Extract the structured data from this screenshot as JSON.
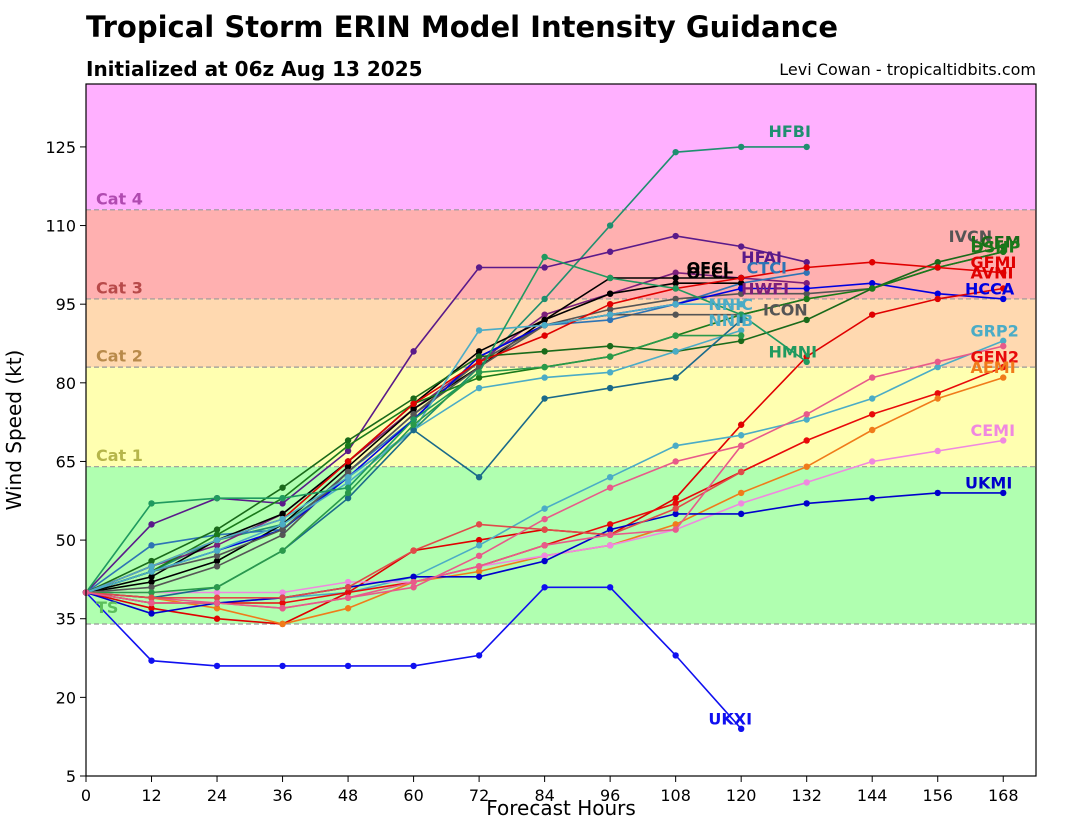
{
  "header": {
    "title": "Tropical Storm ERIN Model Intensity Guidance",
    "subtitle": "Initialized at 06z Aug 13 2025",
    "credit": "Levi Cowan - tropicaltidbits.com"
  },
  "chart_data": {
    "type": "line",
    "xlabel": "Forecast Hours",
    "ylabel": "Wind Speed (kt)",
    "xlim": [
      0,
      174
    ],
    "ylim": [
      5,
      137
    ],
    "xticks": [
      0,
      12,
      24,
      36,
      48,
      60,
      72,
      84,
      96,
      108,
      120,
      132,
      144,
      156,
      168
    ],
    "yticks": [
      5,
      20,
      35,
      50,
      65,
      80,
      95,
      110,
      125
    ],
    "bands": [
      {
        "label": "",
        "from": 5,
        "to": 34,
        "color": "#ffffff"
      },
      {
        "label": "TS",
        "from": 34,
        "to": 64,
        "color": "#b0ffb0",
        "text_color": "#5bbf5b",
        "label_y": 37
      },
      {
        "label": "Cat 1",
        "from": 64,
        "to": 83,
        "color": "#ffffb0",
        "text_color": "#b5b54a",
        "label_y": 66
      },
      {
        "label": "Cat 2",
        "from": 83,
        "to": 96,
        "color": "#ffd9b0",
        "text_color": "#b88a4a",
        "label_y": 85
      },
      {
        "label": "Cat 3",
        "from": 96,
        "to": 113,
        "color": "#ffb0b0",
        "text_color": "#b84a4a",
        "label_y": 98
      },
      {
        "label": "Cat 4",
        "from": 113,
        "to": 137,
        "color": "#ffb0ff",
        "text_color": "#b04ab0",
        "label_y": 115
      }
    ],
    "series": [
      {
        "name": "HFBI",
        "color": "#1f8f6f",
        "x": [
          0,
          12,
          24,
          36,
          48,
          60,
          72,
          84,
          96,
          108,
          120,
          132
        ],
        "y": [
          40,
          44,
          50,
          53,
          62,
          71,
          83,
          96,
          110,
          124,
          125,
          125
        ],
        "label_x": 125,
        "label_y": 128
      },
      {
        "name": "HFAI",
        "color": "#5a1a8a",
        "x": [
          0,
          12,
          24,
          36,
          48,
          60,
          72,
          84,
          96,
          108,
          120,
          132
        ],
        "y": [
          40,
          53,
          58,
          57,
          67,
          86,
          102,
          102,
          105,
          108,
          106,
          103
        ],
        "label_x": 120,
        "label_y": 104
      },
      {
        "name": "HWFI",
        "color": "#7b1f7b",
        "x": [
          0,
          12,
          24,
          36,
          48,
          60,
          72,
          84,
          96,
          108,
          120,
          132
        ],
        "y": [
          40,
          45,
          49,
          55,
          65,
          75,
          84,
          93,
          97,
          101,
          100,
          99
        ],
        "label_x": 120,
        "label_y": 98
      },
      {
        "name": "CTCI",
        "color": "#2e74b5",
        "x": [
          0,
          12,
          24,
          36,
          48,
          60,
          72,
          84,
          96,
          108,
          120,
          132
        ],
        "y": [
          40,
          49,
          51,
          52,
          63,
          73,
          85,
          91,
          92,
          95,
          99,
          101
        ],
        "label_x": 121,
        "label_y": 102
      },
      {
        "name": "OFCL",
        "color": "#000000",
        "x": [
          0,
          12,
          24,
          36,
          48,
          60,
          72,
          84,
          96,
          108,
          120
        ],
        "y": [
          40,
          43,
          50,
          55,
          65,
          76,
          86,
          92,
          100,
          100,
          100
        ],
        "label_x": 110,
        "label_y": 102
      },
      {
        "name": "OFCI",
        "color": "#000000",
        "x": [
          0,
          12,
          24,
          36,
          48,
          60,
          72,
          84,
          96,
          108,
          120
        ],
        "y": [
          40,
          42,
          46,
          53,
          64,
          75,
          83,
          92,
          97,
          99,
          99
        ],
        "label_x": 110,
        "label_y": 101
      },
      {
        "name": "IVCN",
        "color": "#555555",
        "x": [
          0,
          12,
          24,
          36,
          48,
          60,
          72,
          84,
          96,
          108,
          120,
          132,
          144,
          156,
          168
        ],
        "y": [
          40,
          41,
          45,
          51,
          63,
          74,
          84,
          91,
          94,
          96,
          97,
          97,
          98,
          102,
          105
        ],
        "label_x": 158,
        "label_y": 108
      },
      {
        "name": "HCCA",
        "color": "#0000e0",
        "x": [
          0,
          12,
          24,
          36,
          48,
          60,
          72,
          84,
          96,
          108,
          120,
          132,
          144,
          156,
          168
        ],
        "y": [
          40,
          44,
          48,
          52,
          62,
          73,
          85,
          91,
          93,
          95,
          98,
          98,
          99,
          97,
          96
        ],
        "label_x": 161,
        "label_y": 98
      },
      {
        "name": "ICON",
        "color": "#555555",
        "x": [
          0,
          12,
          24,
          36,
          48,
          60,
          72,
          84,
          96,
          108,
          120,
          132
        ],
        "y": [
          40,
          44,
          47,
          52,
          63,
          74,
          83,
          91,
          93,
          93,
          93,
          96
        ],
        "label_x": 124,
        "label_y": 94
      },
      {
        "name": "LGEM",
        "color": "#1a6a1a",
        "x": [
          0,
          12,
          24,
          36,
          48,
          60,
          72,
          84,
          96,
          108,
          120,
          132,
          144,
          156,
          168
        ],
        "y": [
          40,
          46,
          52,
          60,
          69,
          77,
          85,
          86,
          87,
          86,
          88,
          92,
          98,
          103,
          106
        ],
        "label_x": 162,
        "label_y": 107
      },
      {
        "name": "DSHP",
        "color": "#1a7a1a",
        "x": [
          0,
          12,
          24,
          36,
          48,
          60,
          72,
          84,
          96,
          108,
          120,
          132,
          144,
          156,
          168
        ],
        "y": [
          40,
          44,
          51,
          58,
          68,
          76,
          81,
          83,
          85,
          89,
          93,
          96,
          98,
          102,
          105
        ],
        "label_x": 162,
        "label_y": 106
      },
      {
        "name": "GFMI",
        "color": "#e00000",
        "x": [
          0,
          12,
          24,
          36,
          48,
          60,
          72,
          84,
          96,
          108,
          120,
          132,
          144,
          156,
          168
        ],
        "y": [
          40,
          37,
          35,
          34,
          40,
          48,
          50,
          52,
          51,
          58,
          72,
          85,
          93,
          96,
          98
        ],
        "label_x": 162,
        "label_y": 103
      },
      {
        "name": "AVNI",
        "color": "#e00000",
        "x": [
          0,
          12,
          24,
          36,
          48,
          60,
          72,
          84,
          96,
          108,
          120,
          132,
          144,
          156,
          168
        ],
        "y": [
          40,
          45,
          50,
          54,
          65,
          76,
          84,
          89,
          95,
          98,
          100,
          102,
          103,
          102,
          101
        ],
        "label_x": 162,
        "label_y": 101
      },
      {
        "name": "NNIC",
        "color": "#4bacc6",
        "x": [
          0,
          12,
          24,
          36,
          48,
          60,
          72,
          84,
          96,
          108,
          120
        ],
        "y": [
          40,
          45,
          50,
          54,
          62,
          71,
          90,
          91,
          93,
          95,
          95
        ],
        "label_x": 114,
        "label_y": 95
      },
      {
        "name": "NNIB",
        "color": "#4bacc6",
        "x": [
          0,
          12,
          24,
          36,
          48,
          60,
          72,
          84,
          96,
          108,
          120
        ],
        "y": [
          40,
          44,
          48,
          53,
          61,
          71,
          79,
          81,
          82,
          86,
          90
        ],
        "label_x": 114,
        "label_y": 92
      },
      {
        "name": "HMNI",
        "color": "#1f9a5f",
        "x": [
          0,
          12,
          24,
          36,
          48,
          60,
          72,
          84,
          96,
          108,
          120,
          132
        ],
        "y": [
          40,
          57,
          58,
          58,
          60,
          73,
          82,
          104,
          100,
          98,
          93,
          84
        ],
        "label_x": 125,
        "label_y": 86
      },
      {
        "name": "GRP2",
        "color": "#4bacc6",
        "x": [
          0,
          12,
          24,
          36,
          48,
          60,
          72,
          84,
          96,
          108,
          120,
          132,
          144,
          156,
          168
        ],
        "y": [
          40,
          38,
          38,
          39,
          40,
          43,
          49,
          56,
          62,
          68,
          70,
          73,
          77,
          83,
          88
        ],
        "label_x": 162,
        "label_y": 90
      },
      {
        "name": "GEN2",
        "color": "#e80a0a",
        "x": [
          0,
          12,
          24,
          36,
          48,
          60,
          72,
          84,
          96,
          108,
          120,
          132,
          144,
          156,
          168
        ],
        "y": [
          40,
          38,
          38,
          38,
          40,
          42,
          45,
          49,
          53,
          57,
          63,
          69,
          74,
          78,
          83
        ],
        "label_x": 162,
        "label_y": 85
      },
      {
        "name": "AEMI",
        "color": "#f07b1a",
        "x": [
          0,
          12,
          24,
          36,
          48,
          60,
          72,
          84,
          96,
          108,
          120,
          132,
          144,
          156,
          168
        ],
        "y": [
          40,
          39,
          37,
          34,
          37,
          42,
          44,
          47,
          49,
          53,
          59,
          64,
          71,
          77,
          81
        ],
        "label_x": 162,
        "label_y": 83
      },
      {
        "name": "",
        "color": "#e85a8a",
        "x": [
          0,
          12,
          24,
          36,
          48,
          60,
          72,
          84,
          96,
          108,
          120,
          132,
          144,
          156,
          168
        ],
        "y": [
          40,
          39,
          38,
          37,
          39,
          41,
          47,
          54,
          60,
          65,
          68,
          74,
          81,
          84,
          87
        ],
        "label_x": 0,
        "label_y": 0
      },
      {
        "name": "CEMI",
        "color": "#f088e0",
        "x": [
          0,
          12,
          24,
          36,
          48,
          60,
          72,
          84,
          96,
          108,
          120,
          132,
          144,
          156,
          168
        ],
        "y": [
          40,
          40,
          40,
          40,
          42,
          42,
          45,
          47,
          49,
          52,
          57,
          61,
          65,
          67,
          69
        ],
        "label_x": 162,
        "label_y": 71
      },
      {
        "name": "UKMI",
        "color": "#0000cc",
        "x": [
          0,
          12,
          24,
          36,
          48,
          60,
          72,
          84,
          96,
          108,
          120,
          132,
          144,
          156,
          168
        ],
        "y": [
          40,
          36,
          38,
          39,
          41,
          43,
          43,
          46,
          52,
          55,
          55,
          57,
          58,
          59,
          59
        ],
        "label_x": 161,
        "label_y": 61
      },
      {
        "name": "UKXI",
        "color": "#1010f0",
        "x": [
          0,
          12,
          24,
          36,
          48,
          60,
          72,
          84,
          96,
          108,
          120
        ],
        "y": [
          40,
          27,
          26,
          26,
          26,
          26,
          28,
          41,
          41,
          28,
          14
        ],
        "label_x": 114,
        "label_y": 16
      },
      {
        "name": "",
        "color": "#1a6a8a",
        "x": [
          0,
          12,
          24,
          36,
          48,
          60,
          72,
          84,
          96,
          108,
          120
        ],
        "y": [
          40,
          39,
          41,
          48,
          58,
          71,
          62,
          77,
          79,
          81,
          92
        ],
        "label_x": 0,
        "label_y": 0
      },
      {
        "name": "",
        "color": "#2a9a4a",
        "x": [
          0,
          12,
          24,
          36,
          48,
          60,
          72,
          84,
          96,
          108,
          120
        ],
        "y": [
          40,
          40,
          41,
          48,
          59,
          72,
          82,
          83,
          85,
          89,
          89
        ],
        "label_x": 0,
        "label_y": 0
      },
      {
        "name": "",
        "color": "#e04a4a",
        "x": [
          0,
          12,
          24,
          36,
          48,
          60,
          72,
          84,
          96,
          108,
          120
        ],
        "y": [
          40,
          39,
          39,
          39,
          41,
          48,
          53,
          52,
          51,
          56,
          63
        ],
        "label_x": 0,
        "label_y": 0
      },
      {
        "name": "",
        "color": "#e85a8a",
        "x": [
          0,
          12,
          24,
          36,
          48,
          60,
          72,
          84,
          96,
          108,
          120
        ],
        "y": [
          40,
          38,
          38,
          37,
          39,
          42,
          45,
          49,
          51,
          52,
          68
        ],
        "label_x": 0,
        "label_y": 0
      }
    ],
    "label_overrides": {
      "OFCL": "#000000",
      "OFCI": "#000000"
    }
  }
}
